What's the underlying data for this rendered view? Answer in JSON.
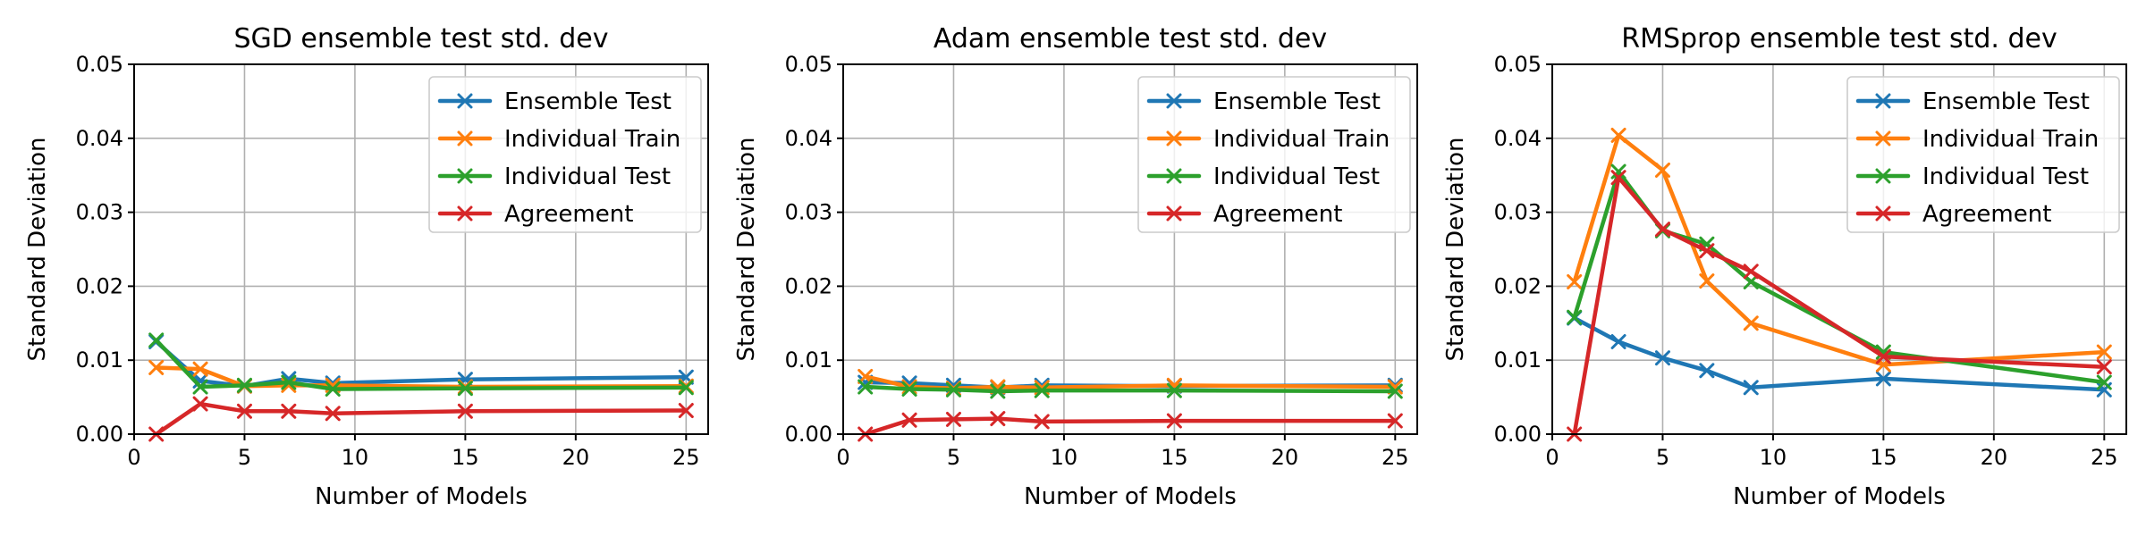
{
  "chart_data": [
    {
      "type": "line",
      "title": "SGD ensemble test std. dev",
      "xlabel": "Number of Models",
      "ylabel": "Standard Deviation",
      "xlim": [
        0,
        26
      ],
      "ylim": [
        0,
        0.05
      ],
      "xticks": [
        0,
        5,
        10,
        15,
        20,
        25
      ],
      "yticks": [
        0.0,
        0.01,
        0.02,
        0.03,
        0.04,
        0.05
      ],
      "ytick_labels": [
        "0.00",
        "0.01",
        "0.02",
        "0.03",
        "0.04",
        "0.05"
      ],
      "grid": true,
      "legend_position": "top-right",
      "x": [
        1,
        3,
        5,
        7,
        9,
        15,
        25
      ],
      "series": [
        {
          "name": "Ensemble Test",
          "color": "#1f77b4",
          "values": [
            0.0125,
            0.0072,
            0.0065,
            0.0075,
            0.0069,
            0.0074,
            0.0077
          ]
        },
        {
          "name": "Individual Train",
          "color": "#ff7f0e",
          "values": [
            0.009,
            0.0088,
            0.0065,
            0.0066,
            0.0066,
            0.0064,
            0.0065
          ]
        },
        {
          "name": "Individual Test",
          "color": "#2ca02c",
          "values": [
            0.0127,
            0.0064,
            0.0066,
            0.007,
            0.0061,
            0.0062,
            0.0063
          ]
        },
        {
          "name": "Agreement",
          "color": "#d62728",
          "values": [
            0.0,
            0.0041,
            0.0031,
            0.0031,
            0.0028,
            0.0031,
            0.0032
          ]
        }
      ]
    },
    {
      "type": "line",
      "title": "Adam ensemble test std. dev",
      "xlabel": "Number of Models",
      "ylabel": "Standard Deviation",
      "xlim": [
        0,
        26
      ],
      "ylim": [
        0,
        0.05
      ],
      "xticks": [
        0,
        5,
        10,
        15,
        20,
        25
      ],
      "yticks": [
        0.0,
        0.01,
        0.02,
        0.03,
        0.04,
        0.05
      ],
      "ytick_labels": [
        "0.00",
        "0.01",
        "0.02",
        "0.03",
        "0.04",
        "0.05"
      ],
      "grid": true,
      "legend_position": "top-right",
      "x": [
        1,
        3,
        5,
        7,
        9,
        15,
        25
      ],
      "series": [
        {
          "name": "Ensemble Test",
          "color": "#1f77b4",
          "values": [
            0.007,
            0.0069,
            0.0066,
            0.0063,
            0.0066,
            0.0065,
            0.0066
          ]
        },
        {
          "name": "Individual Train",
          "color": "#ff7f0e",
          "values": [
            0.0078,
            0.0064,
            0.0062,
            0.0064,
            0.0063,
            0.0066,
            0.0064
          ]
        },
        {
          "name": "Individual Test",
          "color": "#2ca02c",
          "values": [
            0.0064,
            0.0061,
            0.006,
            0.0058,
            0.0059,
            0.0059,
            0.0058
          ]
        },
        {
          "name": "Agreement",
          "color": "#d62728",
          "values": [
            0.0,
            0.0019,
            0.002,
            0.0021,
            0.0017,
            0.0018,
            0.0018
          ]
        }
      ]
    },
    {
      "type": "line",
      "title": "RMSprop ensemble test std. dev",
      "xlabel": "Number of Models",
      "ylabel": "Standard Deviation",
      "xlim": [
        0,
        26
      ],
      "ylim": [
        0,
        0.05
      ],
      "xticks": [
        0,
        5,
        10,
        15,
        20,
        25
      ],
      "yticks": [
        0.0,
        0.01,
        0.02,
        0.03,
        0.04,
        0.05
      ],
      "ytick_labels": [
        "0.00",
        "0.01",
        "0.02",
        "0.03",
        "0.04",
        "0.05"
      ],
      "grid": true,
      "legend_position": "top-right",
      "x": [
        1,
        3,
        5,
        7,
        9,
        15,
        25
      ],
      "series": [
        {
          "name": "Ensemble Test",
          "color": "#1f77b4",
          "values": [
            0.0157,
            0.0125,
            0.0103,
            0.0086,
            0.0063,
            0.0075,
            0.006
          ]
        },
        {
          "name": "Individual Train",
          "color": "#ff7f0e",
          "values": [
            0.0206,
            0.0404,
            0.0357,
            0.0207,
            0.015,
            0.0094,
            0.0111
          ]
        },
        {
          "name": "Individual Test",
          "color": "#2ca02c",
          "values": [
            0.0158,
            0.0355,
            0.0275,
            0.0257,
            0.0206,
            0.0111,
            0.007
          ]
        },
        {
          "name": "Agreement",
          "color": "#d62728",
          "values": [
            0.0,
            0.0347,
            0.0277,
            0.0248,
            0.022,
            0.0105,
            0.0091
          ]
        }
      ]
    }
  ]
}
